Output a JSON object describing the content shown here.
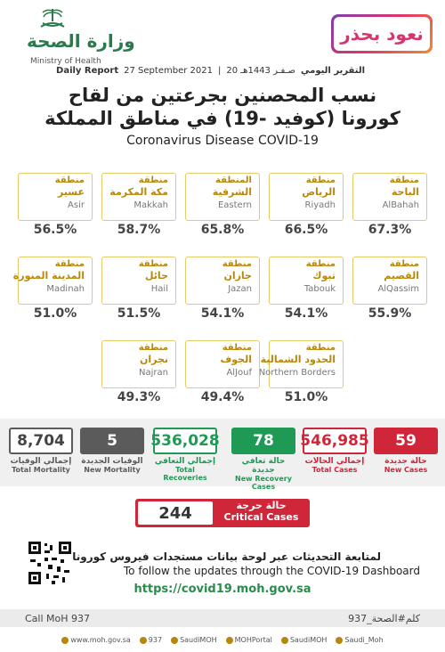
{
  "header": {
    "ministry_ar": "وزارة الصحة",
    "ministry_en": "Ministry of Health",
    "badge": "نعود بحذر"
  },
  "report": {
    "daily_ar": "التقرير اليومي",
    "date_hijri": "20 صـفـر 1443هـ",
    "date_greg": "27 September 2021",
    "daily_en": "Daily Report"
  },
  "title": {
    "line1_ar": "نسب المحصنين بجرعتين من لقاح",
    "line2_ar": "كورونا (كوفيد -19) في مناطق المملكة",
    "subtitle_en": "Coronavirus Disease COVID-19"
  },
  "regions": [
    {
      "prefix": "منطقة",
      "name_ar": "الباحة",
      "name_en": "AlBahah",
      "pct": "67.3%"
    },
    {
      "prefix": "منطقة",
      "name_ar": "الرياض",
      "name_en": "Riyadh",
      "pct": "66.5%"
    },
    {
      "prefix": "المنطقة",
      "name_ar": "الشرقية",
      "name_en": "Eastern",
      "pct": "65.8%"
    },
    {
      "prefix": "منطقة",
      "name_ar": "مكة المكرمة",
      "name_en": "Makkah",
      "pct": "58.7%"
    },
    {
      "prefix": "منطقة",
      "name_ar": "عسير",
      "name_en": "Asir",
      "pct": "56.5%"
    },
    {
      "prefix": "منطقة",
      "name_ar": "القصيم",
      "name_en": "AlQassim",
      "pct": "55.9%"
    },
    {
      "prefix": "منطقة",
      "name_ar": "تبوك",
      "name_en": "Tabouk",
      "pct": "54.1%"
    },
    {
      "prefix": "منطقة",
      "name_ar": "جازان",
      "name_en": "Jazan",
      "pct": "54.1%"
    },
    {
      "prefix": "منطقة",
      "name_ar": "حائل",
      "name_en": "Hail",
      "pct": "51.5%"
    },
    {
      "prefix": "منطقة",
      "name_ar": "المدينة المنورة",
      "name_en": "Madinah",
      "pct": "51.0%"
    },
    {
      "prefix": "منطقة",
      "name_ar": "الحدود الشمالية",
      "name_en": "Northern Borders",
      "pct": "51.0%"
    },
    {
      "prefix": "منطقة",
      "name_ar": "الجوف",
      "name_en": "AlJouf",
      "pct": "49.4%"
    },
    {
      "prefix": "منطقة",
      "name_ar": "نجران",
      "name_en": "Najran",
      "pct": "49.3%"
    }
  ],
  "stats": [
    {
      "value": "59",
      "label_ar": "حالة جديدة",
      "label_en": "New Cases",
      "style": "red-fill"
    },
    {
      "value": "546,985",
      "label_ar": "إجمالي الحالات",
      "label_en": "Total Cases",
      "style": "red-outline"
    },
    {
      "value": "78",
      "label_ar": "حالة تعافي جديدة",
      "label_en": "New Recovery Cases",
      "style": "green-fill"
    },
    {
      "value": "536,028",
      "label_ar": "إجمالي التعافي",
      "label_en": "Total Recoveries",
      "style": "green-outline"
    },
    {
      "value": "5",
      "label_ar": "الوفيات الجديدة",
      "label_en": "New Mortality",
      "style": "gray-fill"
    },
    {
      "value": "8,704",
      "label_ar": "إجمالي الوفيات",
      "label_en": "Total Mortality",
      "style": "gray-outline"
    }
  ],
  "colors": {
    "red": "#d0263a",
    "green": "#1f9a55",
    "gray": "#5b5b5b",
    "gold": "#e6c96a"
  },
  "critical": {
    "value": "244",
    "label_ar": "حالة حرجة",
    "label_en": "Critical Cases"
  },
  "dashboard": {
    "text_ar": "لمتابعة التحديثات عبر لوحة بيانات مستجدات فيروس كورونا",
    "text_en": "To follow the updates through the COVID-19 Dashboard",
    "url": "https://covid19.moh.gov.sa"
  },
  "footer": {
    "call": "Call MoH 937",
    "hashtag": "كلم#الصحة_937",
    "social": [
      "www.moh.gov.sa",
      "937",
      "SaudiMOH",
      "MOHPortal",
      "SaudiMOH",
      "Saudi_Moh"
    ]
  }
}
